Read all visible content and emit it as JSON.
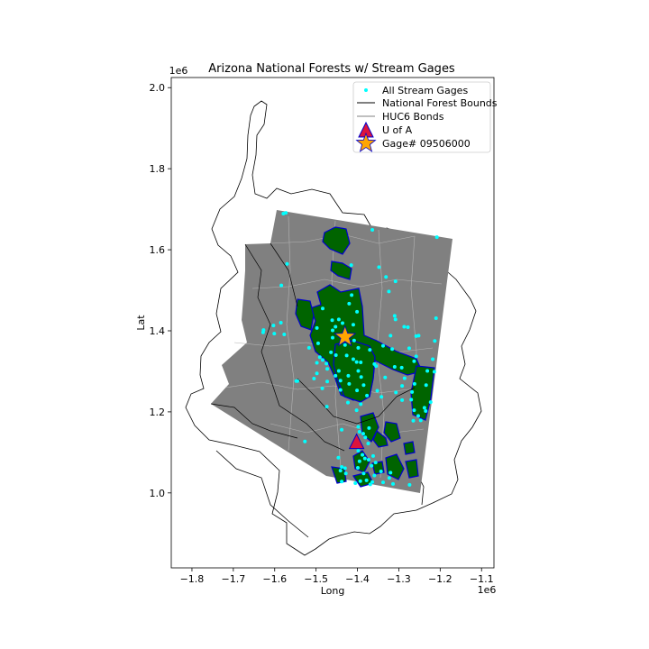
{
  "chart_data": {
    "type": "map",
    "title": "Arizona National Forests w/ Stream Gages",
    "xlabel": "Long",
    "ylabel": "Lat",
    "x_offset_label": "1e6",
    "y_offset_label": "1e6",
    "xlim": [
      -1.85,
      -1.07
    ],
    "ylim": [
      0.815,
      2.025
    ],
    "x_ticks": [
      -1.8,
      -1.7,
      -1.6,
      -1.5,
      -1.4,
      -1.3,
      -1.2,
      -1.1
    ],
    "x_tick_labels": [
      "−1.8",
      "−1.7",
      "−1.6",
      "−1.5",
      "−1.4",
      "−1.3",
      "−1.2",
      "−1.1"
    ],
    "y_ticks": [
      1.0,
      1.2,
      1.4,
      1.6,
      1.8,
      2.0
    ],
    "y_tick_labels": [
      "1.0",
      "1.2",
      "1.4",
      "1.6",
      "1.8",
      "2.0"
    ],
    "legend": {
      "placement": "top-right",
      "entries": [
        {
          "label": "All Stream Gages",
          "marker": "point",
          "color": "#00ffff"
        },
        {
          "label": "National Forest Bounds",
          "marker": "line",
          "color": "#000000"
        },
        {
          "label": "HUC6 Bonds",
          "marker": "line",
          "color": "#808080"
        },
        {
          "label": "U of A",
          "marker": "triangle",
          "color": "#dc143c"
        },
        {
          "label": "Gage# 09506000",
          "marker": "star",
          "color": "#ffa500"
        }
      ]
    },
    "colors": {
      "background_region": "#808080",
      "forest_fill": "#006400",
      "forest_edge": "#0000cd",
      "gages": "#00ffff",
      "huc6_lines": "#b4b4b4",
      "nf_bounds": "#000000",
      "uofa": "#dc143c",
      "uofa_edge": "#0000cd",
      "gage_star": "#ffa500",
      "gage_star_edge": "#0000cd"
    },
    "points": {
      "u_of_a": {
        "x": -1.402,
        "y": 1.125
      },
      "gage_09506000": {
        "x": -1.43,
        "y": 1.385
      }
    },
    "stream_gages": [
      [
        -1.573,
        1.691
      ],
      [
        -1.579,
        1.689
      ],
      [
        -1.364,
        1.649
      ],
      [
        -1.208,
        1.631
      ],
      [
        -1.348,
        1.557
      ],
      [
        -1.57,
        1.565
      ],
      [
        -1.415,
        1.562
      ],
      [
        -1.584,
        1.512
      ],
      [
        -1.331,
        1.533
      ],
      [
        -1.308,
        1.522
      ],
      [
        -1.324,
        1.497
      ],
      [
        -1.414,
        1.488
      ],
      [
        -1.42,
        1.467
      ],
      [
        -1.484,
        1.455
      ],
      [
        -1.401,
        1.447
      ],
      [
        -1.31,
        1.437
      ],
      [
        -1.308,
        1.428
      ],
      [
        -1.21,
        1.431
      ],
      [
        -1.461,
        1.426
      ],
      [
        -1.445,
        1.428
      ],
      [
        -1.436,
        1.419
      ],
      [
        -1.453,
        1.41
      ],
      [
        -1.498,
        1.407
      ],
      [
        -1.46,
        1.401
      ],
      [
        -1.603,
        1.413
      ],
      [
        -1.585,
        1.42
      ],
      [
        -1.41,
        1.415
      ],
      [
        -1.287,
        1.41
      ],
      [
        -1.278,
        1.409
      ],
      [
        -1.627,
        1.402
      ],
      [
        -1.628,
        1.396
      ],
      [
        -1.601,
        1.393
      ],
      [
        -1.577,
        1.391
      ],
      [
        -1.32,
        1.388
      ],
      [
        -1.252,
        1.388
      ],
      [
        -1.258,
        1.387
      ],
      [
        -1.213,
        1.375
      ],
      [
        -1.46,
        1.383
      ],
      [
        -1.408,
        1.376
      ],
      [
        -1.495,
        1.369
      ],
      [
        -1.338,
        1.363
      ],
      [
        -1.43,
        1.365
      ],
      [
        -1.398,
        1.358
      ],
      [
        -1.37,
        1.353
      ],
      [
        -1.316,
        1.355
      ],
      [
        -1.275,
        1.357
      ],
      [
        -1.517,
        1.358
      ],
      [
        -1.464,
        1.347
      ],
      [
        -1.452,
        1.34
      ],
      [
        -1.491,
        1.335
      ],
      [
        -1.426,
        1.339
      ],
      [
        -1.41,
        1.33
      ],
      [
        -1.258,
        1.337
      ],
      [
        -1.218,
        1.33
      ],
      [
        -1.484,
        1.328
      ],
      [
        -1.402,
        1.323
      ],
      [
        -1.392,
        1.322
      ],
      [
        -1.263,
        1.325
      ],
      [
        -1.498,
        1.321
      ],
      [
        -1.475,
        1.319
      ],
      [
        -1.359,
        1.318
      ],
      [
        -1.355,
        1.313
      ],
      [
        -1.31,
        1.311
      ],
      [
        -1.293,
        1.309
      ],
      [
        -1.473,
        1.306
      ],
      [
        -1.445,
        1.301
      ],
      [
        -1.398,
        1.301
      ],
      [
        -1.231,
        1.301
      ],
      [
        -1.214,
        1.299
      ],
      [
        -1.498,
        1.295
      ],
      [
        -1.453,
        1.289
      ],
      [
        -1.422,
        1.289
      ],
      [
        -1.391,
        1.286
      ],
      [
        -1.333,
        1.285
      ],
      [
        -1.286,
        1.283
      ],
      [
        -1.505,
        1.282
      ],
      [
        -1.473,
        1.275
      ],
      [
        -1.441,
        1.277
      ],
      [
        -1.42,
        1.269
      ],
      [
        -1.385,
        1.266
      ],
      [
        -1.292,
        1.264
      ],
      [
        -1.262,
        1.269
      ],
      [
        -1.234,
        1.266
      ],
      [
        -1.545,
        1.276
      ],
      [
        -1.548,
        1.276
      ],
      [
        -1.485,
        1.258
      ],
      [
        -1.441,
        1.254
      ],
      [
        -1.401,
        1.253
      ],
      [
        -1.352,
        1.252
      ],
      [
        -1.307,
        1.248
      ],
      [
        -1.268,
        1.249
      ],
      [
        -1.377,
        1.24
      ],
      [
        -1.342,
        1.237
      ],
      [
        -1.292,
        1.229
      ],
      [
        -1.27,
        1.23
      ],
      [
        -1.223,
        1.224
      ],
      [
        -1.423,
        1.223
      ],
      [
        -1.392,
        1.219
      ],
      [
        -1.238,
        1.21
      ],
      [
        -1.474,
        1.213
      ],
      [
        -1.402,
        1.204
      ],
      [
        -1.263,
        1.204
      ],
      [
        -1.235,
        1.202
      ],
      [
        -1.253,
        1.19
      ],
      [
        -1.247,
        1.179
      ],
      [
        -1.265,
        1.178
      ],
      [
        -1.398,
        1.163
      ],
      [
        -1.372,
        1.16
      ],
      [
        -1.438,
        1.156
      ],
      [
        -1.395,
        1.151
      ],
      [
        -1.386,
        1.146
      ],
      [
        -1.381,
        1.137
      ],
      [
        -1.527,
        1.127
      ],
      [
        -1.374,
        1.122
      ],
      [
        -1.398,
        1.104
      ],
      [
        -1.388,
        1.094
      ],
      [
        -1.362,
        1.091
      ],
      [
        -1.382,
        1.085
      ],
      [
        -1.373,
        1.082
      ],
      [
        -1.395,
        1.078
      ],
      [
        -1.446,
        1.087
      ],
      [
        -1.356,
        1.075
      ],
      [
        -1.366,
        1.067
      ],
      [
        -1.399,
        1.062
      ],
      [
        -1.43,
        1.061
      ],
      [
        -1.441,
        1.055
      ],
      [
        -1.343,
        1.053
      ],
      [
        -1.32,
        1.05
      ],
      [
        -1.428,
        1.048
      ],
      [
        -1.385,
        1.048
      ],
      [
        -1.359,
        1.043
      ],
      [
        -1.323,
        1.037
      ],
      [
        -1.378,
        1.031
      ],
      [
        -1.364,
        1.027
      ],
      [
        -1.438,
        1.028
      ],
      [
        -1.405,
        1.024
      ],
      [
        -1.369,
        1.021
      ],
      [
        -1.338,
        1.026
      ],
      [
        -1.314,
        1.022
      ],
      [
        -1.274,
        1.02
      ],
      [
        -1.438,
        1.064
      ],
      [
        -1.393,
        1.029
      ]
    ]
  }
}
